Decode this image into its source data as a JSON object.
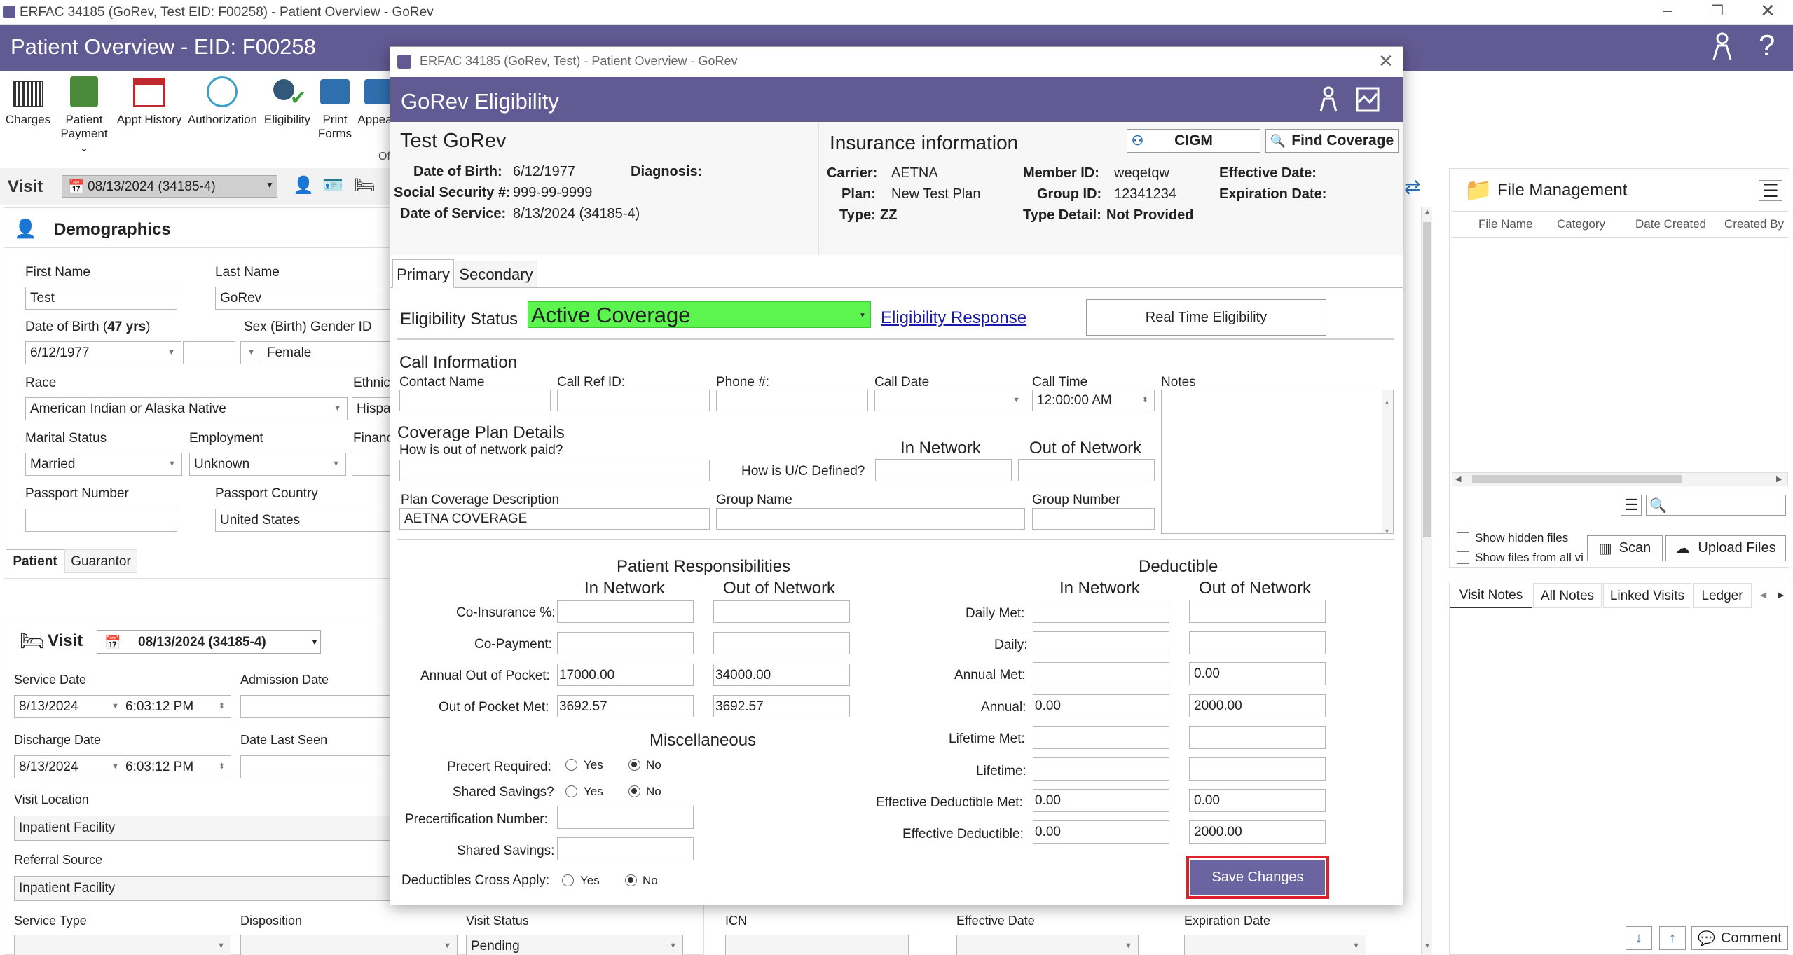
{
  "window": {
    "title": "ERFAC 34185 (GoRev, Test EID: F00258) - Patient Overview - GoRev"
  },
  "header": {
    "title": "Patient Overview - EID: F00258"
  },
  "toolbar": {
    "items": [
      "Charges",
      "Patient\nPayment",
      "Appt History",
      "Authorization",
      "Eligibility",
      "Print\nForms",
      "Appea"
    ],
    "of_text": "Of"
  },
  "visit_bar": {
    "label": "Visit",
    "value": "08/13/2024 (34185-4)"
  },
  "demographics": {
    "title": "Demographics",
    "first_name_label": "First Name",
    "first_name": "Test",
    "last_name_label": "Last Name",
    "last_name": "GoRev",
    "dob_label_prefix": "Date of Birth (",
    "dob_age": "47 yrs",
    "dob_label_suffix": ")",
    "dob": "6/12/1977",
    "sex_label": "Sex (Birth)",
    "gender_label": "Gender ID",
    "gender": "Female",
    "race_label": "Race",
    "race": "American Indian or Alaska Native",
    "ethnicity_label": "Ethnic",
    "ethnicity": "Hispa",
    "marital_label": "Marital Status",
    "marital": "Married",
    "employment_label": "Employment",
    "employment": "Unknown",
    "finance_label": "Financ",
    "passport_number_label": "Passport Number",
    "passport_country_label": "Passport Country",
    "passport_country": "United States",
    "tabs": [
      "Patient",
      "Guarantor"
    ]
  },
  "visit_section": {
    "title": "Visit",
    "visit_value": "08/13/2024 (34185-4)",
    "service_date_label": "Service Date",
    "service_date": "8/13/2024",
    "service_time": "6:03:12 PM",
    "admission_date_label": "Admission Date",
    "discharge_date_label": "Discharge Date",
    "discharge_date": "8/13/2024",
    "discharge_time": "6:03:12 PM",
    "date_last_seen_label": "Date Last Seen",
    "visit_location_label": "Visit Location",
    "visit_location": "Inpatient Facility",
    "referral_source_label": "Referral Source",
    "referral_source": "Inpatient Facility",
    "service_type_label": "Service Type",
    "disposition_label": "Disposition",
    "visit_status_label": "Visit Status",
    "visit_status": "Pending",
    "icn_label": "ICN",
    "effective_date_label": "Effective Date",
    "expiration_date_label": "Expiration Date"
  },
  "file_management": {
    "title": "File Management",
    "columns": [
      "File Name",
      "Category",
      "Date Created",
      "Created By"
    ],
    "show_hidden": "Show hidden files",
    "show_all_visits": "Show files from all visits",
    "scan": "Scan",
    "upload": "Upload Files"
  },
  "notes_tabs": [
    "Visit Notes",
    "All Notes",
    "Linked Visits",
    "Ledger"
  ],
  "comment_button": "Comment",
  "dialog": {
    "window_title": "ERFAC 34185 (GoRev, Test) - Patient Overview - GoRev",
    "header_title": "GoRev Eligibility",
    "patient_name": "Test GoRev",
    "dob_label": "Date of Birth:",
    "dob": "6/12/1977",
    "diagnosis_label": "Diagnosis:",
    "ssn_label": "Social Security #:",
    "ssn": "999-99-9999",
    "dos_label": "Date of Service:",
    "dos": "8/13/2024 (34185-4)",
    "insurance_title": "Insurance information",
    "cigm_button": "CIGM",
    "find_coverage_button": "Find Coverage",
    "carrier_label": "Carrier:",
    "carrier": "AETNA",
    "plan_label": "Plan:",
    "plan": "New Test Plan",
    "type_label": "Type:",
    "type": "ZZ",
    "member_id_label": "Member ID:",
    "member_id": "weqetqw",
    "group_id_label": "Group ID:",
    "group_id": "12341234",
    "type_detail_label": "Type Detail:",
    "type_detail": "Not Provided",
    "effective_date_label": "Effective Date:",
    "expiration_date_label": "Expiration Date:",
    "tabs": [
      "Primary",
      "Secondary"
    ],
    "eligibility_status_label": "Eligibility Status",
    "eligibility_status": "Active Coverage",
    "eligibility_response_link": "Eligibility Response",
    "real_time_button": "Real Time Eligibility",
    "call_info_title": "Call Information",
    "contact_name_label": "Contact Name",
    "call_ref_label": "Call Ref ID:",
    "phone_label": "Phone #:",
    "call_date_label": "Call Date",
    "call_time_label": "Call Time",
    "call_time": "12:00:00 AM",
    "notes_label": "Notes",
    "coverage_title": "Coverage Plan Details",
    "oon_paid_label": "How is out of network paid?",
    "uc_label": "How is U/C Defined?",
    "in_network_label": "In Network",
    "out_network_label": "Out of Network",
    "plan_desc_label": "Plan Coverage Description",
    "plan_desc": "AETNA COVERAGE",
    "group_name_label": "Group Name",
    "group_number_label": "Group Number",
    "pr_title": "Patient Responsibilities",
    "coins_label": "Co-Insurance %:",
    "copay_label": "Co-Payment:",
    "annual_oop_label": "Annual Out of Pocket:",
    "annual_oop_in": "17000.00",
    "annual_oop_out": "34000.00",
    "oop_met_label": "Out of Pocket Met:",
    "oop_met_in": "3692.57",
    "oop_met_out": "3692.57",
    "misc_title": "Miscellaneous",
    "precert_req_label": "Precert Required:",
    "shared_savings_q_label": "Shared Savings?",
    "precert_number_label": "Precertification Number:",
    "shared_savings_label": "Shared Savings:",
    "ded_cross_label": "Deductibles Cross Apply:",
    "yes": "Yes",
    "no": "No",
    "ded_title": "Deductible",
    "daily_met_label": "Daily Met:",
    "daily_label": "Daily:",
    "annual_met_label": "Annual Met:",
    "annual_met_out": "0.00",
    "annual_label": "Annual:",
    "annual_in": "0.00",
    "annual_out": "2000.00",
    "lifetime_met_label": "Lifetime Met:",
    "lifetime_label": "Lifetime:",
    "eff_ded_met_label": "Effective Deductible Met:",
    "eff_ded_met_in": "0.00",
    "eff_ded_met_out": "0.00",
    "eff_ded_label": "Effective Deductible:",
    "eff_ded_in": "0.00",
    "eff_ded_out": "2000.00",
    "save_button": "Save Changes"
  },
  "colors": {
    "header": "#625a92",
    "active_coverage": "#5cf54f",
    "save_button": "#6b64a0",
    "highlight": "#e0202a"
  }
}
